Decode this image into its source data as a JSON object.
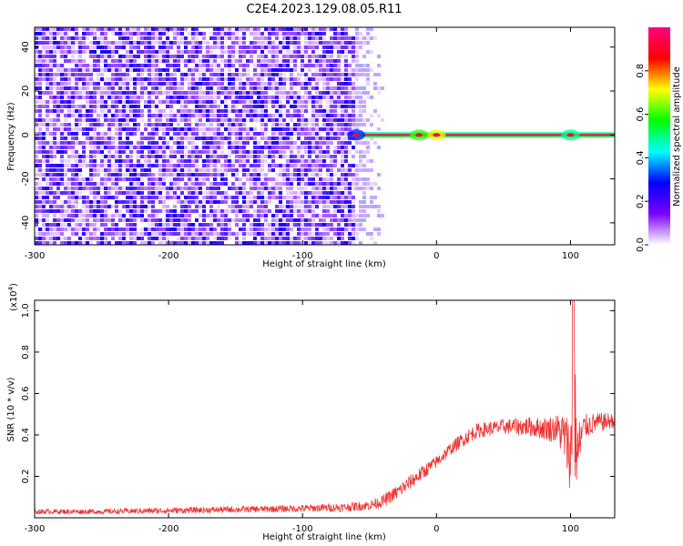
{
  "title": "C2E4.2023.129.08.05.R11",
  "chart_data": [
    {
      "type": "heatmap",
      "xlabel": "Height of straight line (km)",
      "ylabel": "Frequency (Hz)",
      "xlim": [
        -300,
        133
      ],
      "ylim": [
        -50,
        49
      ],
      "xticks": [
        "-300",
        "-200",
        "-100",
        "0",
        "100"
      ],
      "yticks": [
        "40",
        "20",
        "0",
        "-20",
        "-40"
      ],
      "colorbar": {
        "label": "Normalized spectral amplitude",
        "range": [
          0,
          1
        ],
        "ticks": [
          "0.0",
          "0.2",
          "0.4",
          "0.6",
          "0.8"
        ],
        "colormap": [
          "#ffffff",
          "#7a00ff",
          "#0000ff",
          "#00ffff",
          "#00ff00",
          "#ffff00",
          "#ff0000",
          "#ff0080"
        ]
      },
      "noise_region": {
        "x_from": -300,
        "x_to": -62,
        "level": 0.2
      },
      "fade_region": {
        "x_from": -62,
        "x_to": -40
      },
      "signal_line": {
        "x_from": -62,
        "x_to": 133,
        "frequency": 0,
        "level": 0.95
      },
      "signal_blobs": [
        {
          "x": -60,
          "level": 0.3
        },
        {
          "x": -13,
          "level": 0.6
        },
        {
          "x": 0,
          "level": 0.7
        },
        {
          "x": 100,
          "level": 0.5
        }
      ]
    },
    {
      "type": "line",
      "xlabel": "Height of straight line (km)",
      "ylabel": "SNR (10 * v/v)",
      "yscale_label": "(x10",
      "yscale_exp": "4",
      "yscale_close": ")",
      "xlim": [
        -300,
        133
      ],
      "ylim": [
        0,
        1.05
      ],
      "xticks": [
        "-300",
        "-200",
        "-100",
        "0",
        "100"
      ],
      "yticks": [
        "0.2",
        "0.4",
        "0.6",
        "0.8",
        "1.0"
      ],
      "color": "#ee3333",
      "series": [
        {
          "x": [
            -300,
            -250,
            -200,
            -150,
            -100,
            -70,
            -50,
            -40,
            -30,
            -20,
            -10,
            0,
            10,
            20,
            30,
            40,
            50,
            60,
            70,
            80,
            90,
            95,
            100,
            103,
            105,
            110,
            120,
            133
          ],
          "values": [
            0.03,
            0.03,
            0.035,
            0.04,
            0.045,
            0.05,
            0.06,
            0.08,
            0.12,
            0.17,
            0.22,
            0.27,
            0.33,
            0.38,
            0.42,
            0.43,
            0.44,
            0.44,
            0.44,
            0.43,
            0.43,
            0.4,
            0.3,
            0.5,
            0.3,
            0.44,
            0.46,
            0.47
          ],
          "amplitude": [
            0.02,
            0.02,
            0.025,
            0.025,
            0.03,
            0.035,
            0.04,
            0.05,
            0.06,
            0.06,
            0.06,
            0.05,
            0.05,
            0.06,
            0.06,
            0.06,
            0.06,
            0.07,
            0.08,
            0.09,
            0.12,
            0.2,
            0.3,
            0.55,
            0.3,
            0.1,
            0.08,
            0.06
          ]
        }
      ]
    }
  ]
}
